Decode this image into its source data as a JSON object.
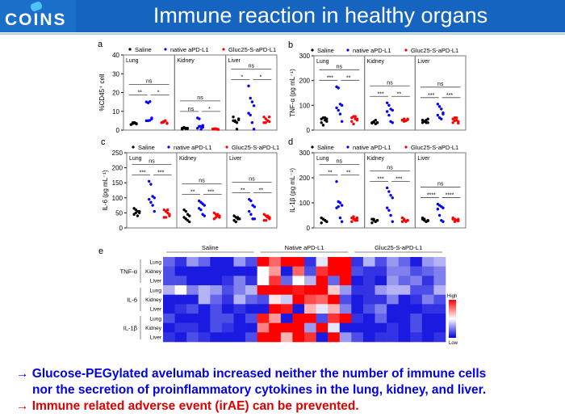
{
  "header": {
    "logo": "COINS",
    "title": "Immune reaction in healthy organs"
  },
  "colors": {
    "saline": "#000000",
    "native": "#0000ff",
    "gluc": "#ff0000",
    "header": "#1565c0",
    "high": "#ff0000",
    "mid": "#ffffff",
    "low": "#0000dd"
  },
  "legend": [
    "Saline",
    "native aPD-L1",
    "Gluc25-S-aPD-L1"
  ],
  "chart_data": [
    {
      "type": "scatter",
      "panel": "a",
      "ylabel": "%CD45⁺ cell",
      "ylim": [
        0,
        40
      ],
      "yticks": [
        0,
        10,
        20,
        30,
        40
      ],
      "organs": [
        "Lung",
        "Kidney",
        "Liver"
      ],
      "groups": {
        "Lung": [
          [
            3,
            3.5,
            4,
            3.5,
            3,
            4,
            3.8,
            3.2
          ],
          [
            15,
            14.5,
            15.2,
            6,
            5,
            5,
            5.2,
            6.5
          ],
          [
            4,
            4.5,
            5,
            3.5,
            4,
            4.2,
            5,
            3.8
          ]
        ],
        "Kidney": [
          [
            1,
            1.2,
            0.8,
            1,
            0.5,
            1.5,
            1,
            0.8
          ],
          [
            6.5,
            6,
            2,
            1.5,
            1,
            2,
            0.5,
            2.5
          ],
          [
            0.5,
            0.8,
            0.5,
            0.3,
            0.6,
            0.5,
            0.7,
            0.4
          ]
        ],
        "Liver": [
          [
            7,
            5,
            4,
            6,
            5,
            4.5,
            0.5,
            5.5
          ],
          [
            23.5,
            17,
            15,
            13,
            9,
            8,
            4,
            0.5
          ],
          [
            7,
            6,
            5,
            4.5,
            4,
            4,
            5,
            7
          ]
        ]
      },
      "significance": {
        "Lung": [
          "ns",
          "**",
          "*"
        ],
        "Kidney": [
          "ns",
          "ns",
          "*"
        ],
        "Liver": [
          "ns",
          "*",
          "*"
        ]
      }
    },
    {
      "type": "scatter",
      "panel": "b",
      "ylabel": "TNF-α (pg mL⁻¹)",
      "ylim": [
        0,
        300
      ],
      "yticks": [
        0,
        100,
        200,
        300
      ],
      "organs": [
        "Lung",
        "Kidney",
        "Liver"
      ],
      "groups": {
        "Lung": [
          [
            45,
            50,
            40,
            35,
            30,
            20,
            50,
            45
          ],
          [
            175,
            170,
            105,
            100,
            90,
            80,
            65,
            35
          ],
          [
            50,
            55,
            45,
            40,
            35,
            25,
            55,
            45
          ]
        ],
        "Kidney": [
          [
            30,
            35,
            25,
            30,
            28,
            32,
            40,
            30
          ],
          [
            110,
            100,
            85,
            80,
            75,
            60,
            35,
            30
          ],
          [
            40,
            45,
            38,
            42,
            40,
            35,
            38,
            45
          ]
        ],
        "Liver": [
          [
            40,
            35,
            30,
            45,
            30,
            35,
            40,
            30
          ],
          [
            105,
            95,
            85,
            70,
            60,
            50,
            45,
            65
          ],
          [
            45,
            50,
            40,
            35,
            30,
            38,
            50,
            28
          ]
        ]
      },
      "significance": {
        "Lung": [
          "ns",
          "***",
          "**"
        ],
        "Kidney": [
          "ns",
          "***",
          "**"
        ],
        "Liver": [
          "ns",
          "***",
          "***"
        ]
      }
    },
    {
      "type": "scatter",
      "panel": "c",
      "ylabel": "IL-6 (pg mL⁻¹)",
      "ylim": [
        0,
        250
      ],
      "yticks": [
        0,
        50,
        100,
        150,
        200,
        250
      ],
      "organs": [
        "Lung",
        "Kidney",
        "Liver"
      ],
      "groups": {
        "Lung": [
          [
            65,
            60,
            55,
            50,
            45,
            50,
            40,
            55
          ],
          [
            155,
            145,
            105,
            100,
            95,
            85,
            75,
            55
          ],
          [
            60,
            55,
            50,
            40,
            35,
            35,
            60,
            45
          ]
        ],
        "Kidney": [
          [
            60,
            55,
            45,
            40,
            35,
            30,
            25,
            20
          ],
          [
            90,
            85,
            80,
            75,
            65,
            60,
            45,
            40
          ],
          [
            50,
            45,
            40,
            35,
            30,
            35,
            45,
            40
          ]
        ],
        "Liver": [
          [
            40,
            35,
            30,
            30,
            25,
            20,
            35,
            30
          ],
          [
            95,
            90,
            75,
            70,
            55,
            45,
            30,
            30
          ],
          [
            45,
            40,
            35,
            30,
            25,
            25,
            40,
            35
          ]
        ]
      },
      "significance": {
        "Lung": [
          "ns",
          "***",
          "***"
        ],
        "Kidney": [
          "ns",
          "**",
          "***"
        ],
        "Liver": [
          "ns",
          "**",
          "**"
        ]
      }
    },
    {
      "type": "scatter",
      "panel": "d",
      "ylabel": "IL-1β (pg mL⁻¹)",
      "ylim": [
        0,
        300
      ],
      "yticks": [
        0,
        100,
        200,
        300
      ],
      "organs": [
        "Lung",
        "Kidney",
        "Liver"
      ],
      "groups": {
        "Lung": [
          [
            40,
            35,
            30,
            25,
            20,
            35,
            30,
            25
          ],
          [
            185,
            105,
            100,
            90,
            80,
            85,
            40,
            25
          ],
          [
            40,
            45,
            35,
            30,
            25,
            35,
            30,
            40
          ]
        ],
        "Kidney": [
          [
            35,
            30,
            25,
            30,
            20,
            35,
            25,
            30
          ],
          [
            160,
            145,
            130,
            120,
            80,
            70,
            50,
            25
          ],
          [
            40,
            30,
            25,
            30,
            25,
            35,
            28,
            30
          ]
        ],
        "Liver": [
          [
            35,
            30,
            25,
            30,
            40,
            35,
            25,
            28
          ],
          [
            95,
            90,
            85,
            80,
            75,
            50,
            30,
            25
          ],
          [
            40,
            35,
            30,
            28,
            35,
            25,
            30,
            35
          ]
        ]
      },
      "significance": {
        "Lung": [
          "ns",
          "**",
          "**"
        ],
        "Kidney": [
          "ns",
          "***",
          "***"
        ],
        "Liver": [
          "ns",
          "****",
          "****"
        ]
      }
    },
    {
      "type": "heatmap",
      "panel": "e",
      "column_groups": [
        "Saline",
        "Native aPD-L1",
        "Gluc25-S-aPD-L1"
      ],
      "row_groups": [
        {
          "name": "TNF-α",
          "rows": [
            "Lung",
            "Kidney",
            "Liver"
          ]
        },
        {
          "name": "IL-6",
          "rows": [
            "Lung",
            "Kidney",
            "Liver"
          ]
        },
        {
          "name": "IL-1β",
          "rows": [
            "Lung",
            "Kidney",
            "Liver"
          ]
        }
      ],
      "colorbar": {
        "high": "High",
        "low": "Low"
      },
      "values": [
        [
          0.2,
          0.1,
          0.3,
          0.2,
          0.05,
          0.05,
          0.3,
          0.15,
          1,
          0.8,
          1,
          1,
          0.1,
          0.45,
          1,
          1,
          0.1,
          0.35,
          0.15,
          0.3,
          0.2,
          0.05,
          0.3,
          0.35
        ],
        [
          0.15,
          0.05,
          0.05,
          0.05,
          0.05,
          0.05,
          0.05,
          0.05,
          0.5,
          0.7,
          0.05,
          0.8,
          0.15,
          0.9,
          1,
          1,
          0.15,
          0.1,
          0.1,
          0.25,
          0.25,
          0.15,
          0.2,
          0.25
        ],
        [
          0.15,
          0.15,
          0.05,
          0.05,
          0.05,
          0.1,
          0.25,
          0.1,
          0.5,
          0.9,
          0.2,
          0.5,
          0.35,
          1,
          0.2,
          1,
          0.05,
          0.1,
          0.05,
          0.3,
          0.2,
          0.25,
          0.1,
          0.25
        ],
        [
          0.35,
          0.5,
          0.25,
          0.35,
          0.3,
          0.15,
          0.25,
          0.35,
          1,
          1,
          1,
          0.95,
          1,
          1,
          0.6,
          0.3,
          0.1,
          0.1,
          0.3,
          0.35,
          0.35,
          0.15,
          0.15,
          0.35
        ],
        [
          0.05,
          0.05,
          0.05,
          0.35,
          0.2,
          0.1,
          0.35,
          0.2,
          0.15,
          0.55,
          0.4,
          1,
          0.85,
          0.8,
          1,
          0.15,
          0.05,
          0.1,
          0.1,
          0.25,
          0.05,
          0.1,
          0.25,
          0.15
        ],
        [
          0.05,
          0.1,
          0.15,
          0.05,
          0.15,
          0.05,
          0.1,
          0.05,
          0.05,
          1,
          0.95,
          0.05,
          0.65,
          0.45,
          0.65,
          0.25,
          0.05,
          0.15,
          0.25,
          0.05,
          0.05,
          0.05,
          0.1,
          0.1
        ],
        [
          0.15,
          0.05,
          0.05,
          0.05,
          0.15,
          0.15,
          0.05,
          0.15,
          0.95,
          0.7,
          0.05,
          1,
          1,
          0.15,
          0.9,
          1,
          0.1,
          0.05,
          0.2,
          0.05,
          0.05,
          0.15,
          0.05,
          0.05
        ],
        [
          0.05,
          0.1,
          0.1,
          0.05,
          0.15,
          0.1,
          0.05,
          0.05,
          0.75,
          1,
          1,
          1,
          0.3,
          1,
          0.45,
          0.05,
          0.05,
          0.05,
          0.05,
          0.1,
          0.05,
          0.15,
          0.05,
          0.05
        ],
        [
          0.1,
          0.05,
          0.15,
          0.1,
          0.05,
          0.05,
          0.05,
          0.15,
          1,
          1,
          0.65,
          1,
          0.9,
          0.05,
          1,
          0.3,
          0.15,
          0.05,
          0.1,
          0.1,
          0.05,
          0.1,
          0.05,
          0.1
        ]
      ]
    }
  ],
  "conclusions": [
    "→  Glucose-PEGylated avelumab increased neither the number of immune cells",
    "nor the secretion of proinflammatory cytokines in the lung, kidney, and liver.",
    "→  Immune related adverse event (irAE) can be prevented."
  ]
}
